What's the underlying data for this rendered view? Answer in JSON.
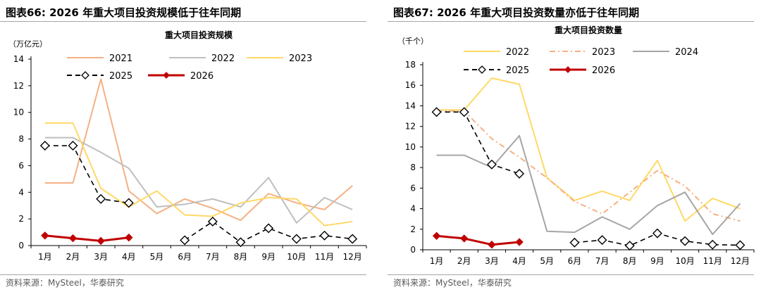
{
  "charts": [
    {
      "figure_title": "图表66:  2026 年重大项目投资规模低于往年同期",
      "source": "资料来源：MySteel，华泰研究",
      "chart_title": "重大项目投资规模",
      "unit": "（万亿元）",
      "colors": {
        "2021": "#f4b183",
        "2022": "#bfbfbf",
        "2023": "#ffd966",
        "2025": "#000000",
        "2026": "#c00000"
      }
    },
    {
      "figure_title": "图表67:  2026 年重大项目投资数量亦低于往年同期",
      "source": "资料来源：MySteel，华泰研究",
      "chart_title": "重大项目投资数量",
      "unit": "（千个）",
      "colors": {
        "2022": "#ffd966",
        "2023": "#f4b183",
        "2024": "#a6a6a6",
        "2025": "#000000",
        "2026": "#c00000"
      }
    }
  ],
  "chart_data": [
    {
      "type": "line",
      "title": "重大项目投资规模",
      "ylabel": "（万亿元）",
      "xlabel": "",
      "categories": [
        "1月",
        "2月",
        "3月",
        "4月",
        "5月",
        "6月",
        "7月",
        "8月",
        "9月",
        "10月",
        "11月",
        "12月"
      ],
      "ylim": [
        0,
        14
      ],
      "yticks": [
        0,
        2,
        4,
        6,
        8,
        10,
        12,
        14
      ],
      "grid": false,
      "series": [
        {
          "name": "2021",
          "style": "solid",
          "values": [
            4.7,
            4.7,
            12.5,
            4.1,
            2.4,
            3.5,
            2.8,
            1.9,
            3.9,
            3.2,
            2.7,
            4.5
          ]
        },
        {
          "name": "2022",
          "style": "solid",
          "values": [
            8.1,
            8.1,
            7.0,
            5.8,
            2.9,
            3.1,
            3.5,
            2.9,
            5.1,
            1.7,
            3.6,
            2.7
          ]
        },
        {
          "name": "2023",
          "style": "solid",
          "values": [
            9.2,
            9.2,
            4.3,
            2.9,
            4.1,
            2.3,
            2.2,
            3.2,
            3.6,
            3.5,
            1.5,
            1.8
          ]
        },
        {
          "name": "2025",
          "style": "dashed-diamond",
          "values": [
            7.5,
            7.5,
            3.5,
            3.2,
            null,
            0.4,
            1.8,
            0.25,
            1.3,
            0.5,
            0.75,
            0.5
          ]
        },
        {
          "name": "2026",
          "style": "solid-filled-diamond",
          "values": [
            0.75,
            0.55,
            0.35,
            0.6,
            null,
            null,
            null,
            null,
            null,
            null,
            null,
            null
          ]
        }
      ],
      "legend": {
        "placement": "top",
        "order": [
          "2021",
          "2022",
          "2023",
          "2025",
          "2026"
        ]
      }
    },
    {
      "type": "line",
      "title": "重大项目投资数量",
      "ylabel": "（千个）",
      "xlabel": "",
      "categories": [
        "1月",
        "2月",
        "3月",
        "4月",
        "5月",
        "6月",
        "7月",
        "8月",
        "9月",
        "10月",
        "11月",
        "12月"
      ],
      "ylim": [
        0,
        18
      ],
      "yticks": [
        0,
        2,
        4,
        6,
        8,
        10,
        12,
        14,
        16,
        18
      ],
      "grid": false,
      "series": [
        {
          "name": "2022",
          "style": "solid",
          "values": [
            13.6,
            13.6,
            16.7,
            16.1,
            7.0,
            4.8,
            5.7,
            4.8,
            8.7,
            2.8,
            5.0,
            4.0
          ]
        },
        {
          "name": "2023",
          "style": "dashdot",
          "values": [
            13.5,
            13.5,
            10.8,
            9.0,
            7.0,
            4.7,
            3.5,
            5.6,
            7.7,
            6.2,
            3.5,
            2.8
          ]
        },
        {
          "name": "2024",
          "style": "solid",
          "values": [
            9.2,
            9.2,
            8.0,
            11.1,
            1.8,
            1.7,
            3.2,
            2.0,
            4.3,
            5.6,
            1.5,
            4.5
          ]
        },
        {
          "name": "2025",
          "style": "dashed-diamond",
          "values": [
            13.4,
            13.4,
            8.3,
            7.4,
            null,
            0.7,
            0.95,
            0.4,
            1.6,
            0.85,
            0.5,
            0.45
          ]
        },
        {
          "name": "2026",
          "style": "solid-filled-diamond",
          "values": [
            1.35,
            1.1,
            0.5,
            0.75,
            null,
            null,
            null,
            null,
            null,
            null,
            null,
            null
          ]
        }
      ],
      "legend": {
        "placement": "top",
        "order": [
          "2022",
          "2023",
          "2024",
          "2025",
          "2026"
        ]
      }
    }
  ]
}
